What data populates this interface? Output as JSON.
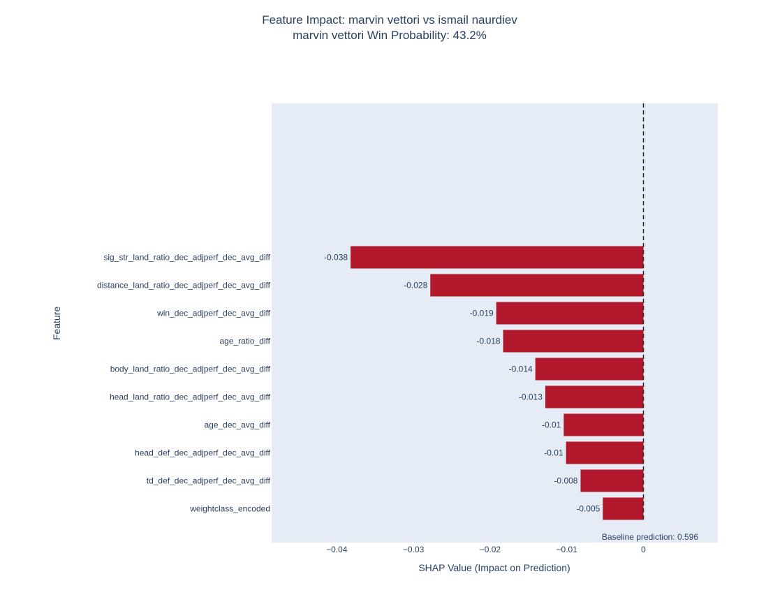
{
  "chart_data": {
    "type": "bar",
    "orientation": "horizontal",
    "title": "Feature Impact: marvin vettori vs ismail naurdiev",
    "subtitle": "marvin vettori Win Probability: 43.2%",
    "xlabel": "SHAP Value (Impact on Prediction)",
    "ylabel": "Feature",
    "xlim": [
      -0.0485,
      0.0097
    ],
    "x_ticks": [
      -0.04,
      -0.03,
      -0.02,
      -0.01,
      0
    ],
    "x_tick_labels": [
      "−0.04",
      "−0.03",
      "−0.02",
      "−0.01",
      "0"
    ],
    "grid": false,
    "categories": [
      "sig_str_land_ratio_dec_adjperf_dec_avg_diff",
      "distance_land_ratio_dec_adjperf_dec_avg_diff",
      "win_dec_adjperf_dec_avg_diff",
      "age_ratio_diff",
      "body_land_ratio_dec_adjperf_dec_avg_diff",
      "head_land_ratio_dec_adjperf_dec_avg_diff",
      "age_dec_avg_diff",
      "head_def_dec_adjperf_dec_avg_diff",
      "td_def_dec_adjperf_dec_avg_diff",
      "weightclass_encoded"
    ],
    "values": [
      -0.0382,
      -0.0278,
      -0.0192,
      -0.0183,
      -0.0141,
      -0.0128,
      -0.0104,
      -0.0101,
      -0.0082,
      -0.0053
    ],
    "data_labels": [
      "-0.038",
      "-0.028",
      "-0.019",
      "-0.018",
      "-0.014",
      "-0.013",
      "-0.01",
      "-0.01",
      "-0.008",
      "-0.005"
    ],
    "empty_slots_above": 5,
    "reference_line": {
      "x": 0,
      "style": "dashed"
    },
    "annotation": "Baseline prediction: 0.596",
    "colors": {
      "bar": "#b2182b",
      "plot_background": "#e5ecf6",
      "text": "#2a3f5f",
      "reference_line": "#222222"
    }
  }
}
